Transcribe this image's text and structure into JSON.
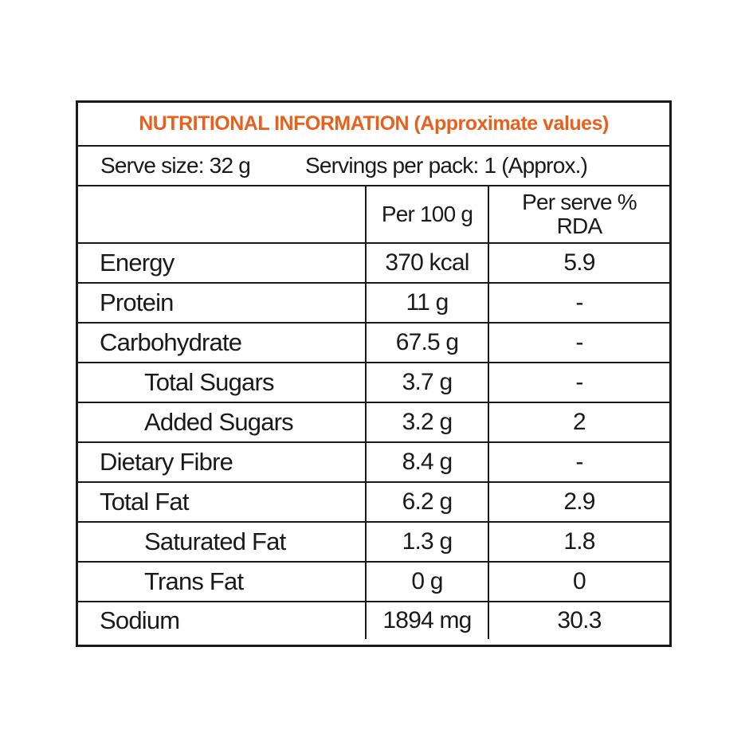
{
  "title": "NUTRITIONAL INFORMATION (Approximate values)",
  "serve_size": "Serve size: 32 g",
  "servings_per_pack": "Servings per pack: 1 (Approx.)",
  "headers": {
    "nutrient": "",
    "per_100g": "Per 100 g",
    "per_serve_line1": "Per serve %",
    "per_serve_line2": "RDA"
  },
  "rows": [
    {
      "name": "Energy",
      "per100": "370 kcal",
      "rda": "5.9"
    },
    {
      "name": "Protein",
      "per100": "11 g",
      "rda": "-"
    },
    {
      "name": "Carbohydrate",
      "per100": "67.5 g",
      "rda": "-"
    },
    {
      "name": "Total Sugars",
      "per100": "3.7 g",
      "rda": "-"
    },
    {
      "name": "Added Sugars",
      "per100": "3.2 g",
      "rda": "2"
    },
    {
      "name": "Dietary Fibre",
      "per100": "8.4 g",
      "rda": "-"
    },
    {
      "name": "Total Fat",
      "per100": "6.2 g",
      "rda": "2.9"
    },
    {
      "name": "Saturated Fat",
      "per100": "1.3 g",
      "rda": "1.8"
    },
    {
      "name": "Trans Fat",
      "per100": "0 g",
      "rda": "0"
    },
    {
      "name": "Sodium",
      "per100": "1894 mg",
      "rda": "30.3"
    }
  ],
  "colors": {
    "title": "#e8601c",
    "text": "#1a1a1a",
    "border": "#1a1a1a"
  }
}
